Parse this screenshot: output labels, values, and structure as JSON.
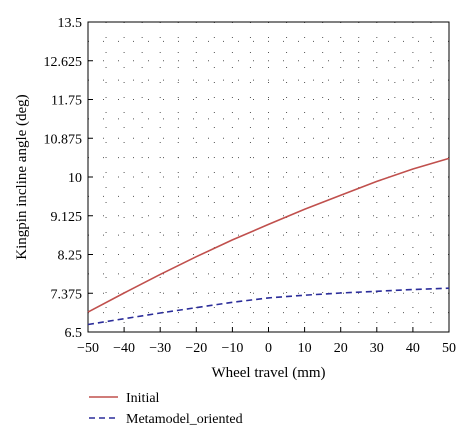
{
  "chart_data": {
    "type": "line",
    "xlabel": "Wheel travel (mm)",
    "ylabel": "Kingpin incline angle (deg)",
    "xlim": [
      -50,
      50
    ],
    "ylim": [
      6.5,
      13.5
    ],
    "x_ticks": [
      -50,
      -40,
      -30,
      -20,
      -10,
      0,
      10,
      20,
      30,
      40,
      50
    ],
    "x_tick_labels": [
      "−50",
      "−40",
      "−30",
      "−20",
      "−10",
      "0",
      "10",
      "20",
      "30",
      "40",
      "50"
    ],
    "y_ticks": [
      6.5,
      7.375,
      8.25,
      9.125,
      10,
      10.875,
      11.75,
      12.625,
      13.5
    ],
    "y_tick_labels": [
      "6.5",
      "7.375",
      "8.25",
      "9.125",
      "10",
      "10.875",
      "11.75",
      "12.625",
      "13.5"
    ],
    "grid": "dotted",
    "legend_position": "bottom",
    "x": [
      -50,
      -40,
      -30,
      -20,
      -10,
      0,
      10,
      20,
      30,
      40,
      50
    ],
    "series": [
      {
        "name": "Initial",
        "color": "#c0504d",
        "dash": "solid",
        "values": [
          6.95,
          7.38,
          7.8,
          8.2,
          8.58,
          8.93,
          9.27,
          9.59,
          9.9,
          10.18,
          10.42
        ]
      },
      {
        "name": "Metamodel_oriented",
        "color": "#2b2d9a",
        "dash": "dashed",
        "values": [
          6.67,
          6.8,
          6.93,
          7.05,
          7.17,
          7.27,
          7.33,
          7.38,
          7.42,
          7.46,
          7.49
        ]
      }
    ]
  }
}
